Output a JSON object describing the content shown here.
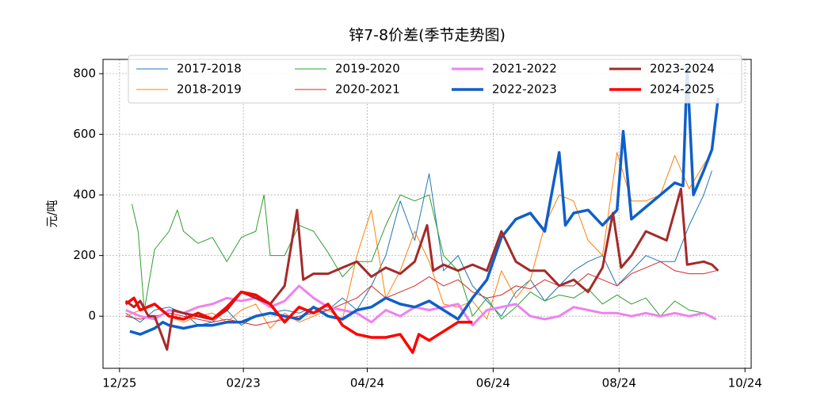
{
  "chart_data": {
    "type": "line",
    "title": "锌7-8价差(季节走势图)",
    "y_label": "元/吨",
    "xlim": [
      "12/17",
      "10/27"
    ],
    "xticks": [
      "12/25",
      "02/23",
      "04/24",
      "06/24",
      "08/24",
      "10/24"
    ],
    "ylim": [
      -172,
      847
    ],
    "yticks": [
      0,
      200,
      400,
      600,
      800
    ],
    "grid": true,
    "series": [
      {
        "name": "2017-2018",
        "color": "#1f77b4",
        "width": 1,
        "x": [
          "12/28",
          "01/04",
          "01/11",
          "01/18",
          "01/25",
          "02/01",
          "02/08",
          "02/15",
          "02/22",
          "03/01",
          "03/08",
          "03/15",
          "03/22",
          "03/29",
          "04/05",
          "04/12",
          "04/19",
          "04/26",
          "05/03",
          "05/10",
          "05/17",
          "05/24",
          "05/31",
          "06/07",
          "06/14",
          "06/21",
          "06/28",
          "07/05",
          "07/12",
          "07/19",
          "07/26",
          "08/02",
          "08/09",
          "08/16",
          "08/23",
          "08/30",
          "09/06",
          "09/13",
          "09/20",
          "09/27",
          "10/04",
          "10/08"
        ],
        "values": [
          10,
          -20,
          20,
          30,
          10,
          -30,
          -20,
          20,
          -30,
          0,
          10,
          20,
          10,
          30,
          20,
          60,
          20,
          100,
          200,
          380,
          250,
          470,
          150,
          200,
          100,
          50,
          0,
          80,
          120,
          50,
          100,
          150,
          180,
          200,
          100,
          150,
          200,
          180,
          180,
          300,
          400,
          480
        ]
      },
      {
        "name": "2018-2019",
        "color": "#ff7f0e",
        "width": 1,
        "x": [
          "12/28",
          "01/04",
          "01/11",
          "01/18",
          "01/25",
          "02/01",
          "02/08",
          "02/15",
          "02/22",
          "03/01",
          "03/08",
          "03/15",
          "03/22",
          "03/29",
          "04/05",
          "04/12",
          "04/19",
          "04/26",
          "05/03",
          "05/10",
          "05/17",
          "05/24",
          "05/31",
          "06/07",
          "06/14",
          "06/21",
          "06/28",
          "07/05",
          "07/12",
          "07/19",
          "07/26",
          "08/02",
          "08/09",
          "08/16",
          "08/23",
          "08/30",
          "09/06",
          "09/13",
          "09/20",
          "09/27",
          "10/04",
          "10/08"
        ],
        "values": [
          0,
          20,
          40,
          0,
          -20,
          0,
          10,
          -20,
          20,
          40,
          -40,
          10,
          -20,
          0,
          20,
          -10,
          200,
          350,
          60,
          150,
          280,
          180,
          40,
          30,
          50,
          -10,
          150,
          60,
          120,
          300,
          400,
          380,
          250,
          200,
          540,
          380,
          380,
          400,
          530,
          420,
          500,
          540
        ]
      },
      {
        "name": "2019-2020",
        "color": "#2ca02c",
        "width": 1,
        "x": [
          "12/31",
          "01/03",
          "01/06",
          "01/11",
          "01/18",
          "01/22",
          "01/25",
          "02/01",
          "02/08",
          "02/15",
          "02/22",
          "03/01",
          "03/05",
          "03/08",
          "03/15",
          "03/22",
          "03/29",
          "04/05",
          "04/12",
          "04/19",
          "04/26",
          "05/03",
          "05/10",
          "05/17",
          "05/24",
          "05/31",
          "06/07",
          "06/14",
          "06/21",
          "06/28",
          "07/05",
          "07/12",
          "07/19",
          "07/26",
          "08/02",
          "08/09",
          "08/16",
          "08/23",
          "08/30",
          "09/06",
          "09/13",
          "09/20",
          "09/27",
          "10/04",
          "10/08"
        ],
        "values": [
          370,
          280,
          20,
          220,
          280,
          350,
          280,
          240,
          260,
          180,
          260,
          280,
          400,
          200,
          200,
          300,
          280,
          210,
          130,
          180,
          180,
          300,
          400,
          380,
          400,
          200,
          150,
          0,
          60,
          -10,
          30,
          80,
          50,
          70,
          60,
          90,
          40,
          70,
          40,
          60,
          0,
          50,
          20,
          10,
          0
        ]
      },
      {
        "name": "2020-2021",
        "color": "#d62728",
        "width": 1,
        "x": [
          "12/28",
          "01/04",
          "01/11",
          "01/18",
          "01/25",
          "02/01",
          "02/08",
          "02/15",
          "02/22",
          "03/01",
          "03/08",
          "03/15",
          "03/22",
          "03/29",
          "04/05",
          "04/12",
          "04/19",
          "04/26",
          "05/03",
          "05/10",
          "05/17",
          "05/24",
          "05/31",
          "06/07",
          "06/14",
          "06/21",
          "06/28",
          "07/05",
          "07/12",
          "07/19",
          "07/26",
          "08/02",
          "08/09",
          "08/16",
          "08/23",
          "08/30",
          "09/06",
          "09/13",
          "09/20",
          "09/27",
          "10/04",
          "10/10"
        ],
        "values": [
          0,
          -10,
          0,
          10,
          0,
          -10,
          -20,
          -10,
          -20,
          -30,
          -20,
          -10,
          0,
          10,
          20,
          40,
          60,
          100,
          60,
          80,
          100,
          130,
          100,
          120,
          80,
          60,
          70,
          100,
          90,
          120,
          100,
          100,
          140,
          120,
          100,
          140,
          160,
          180,
          150,
          140,
          140,
          150
        ]
      },
      {
        "name": "2021-2022",
        "color": "#ee82ee",
        "width": 3,
        "x": [
          "12/28",
          "01/04",
          "01/11",
          "01/18",
          "01/25",
          "02/01",
          "02/08",
          "02/15",
          "02/22",
          "03/01",
          "03/08",
          "03/15",
          "03/22",
          "03/29",
          "04/05",
          "04/12",
          "04/19",
          "04/26",
          "05/03",
          "05/10",
          "05/17",
          "05/24",
          "05/31",
          "06/07",
          "06/14",
          "06/21",
          "06/28",
          "07/05",
          "07/12",
          "07/19",
          "07/26",
          "08/02",
          "08/09",
          "08/16",
          "08/23",
          "08/30",
          "09/06",
          "09/13",
          "09/20",
          "09/27",
          "10/04",
          "10/10"
        ],
        "values": [
          20,
          0,
          -10,
          20,
          10,
          30,
          40,
          60,
          50,
          60,
          30,
          50,
          100,
          60,
          30,
          20,
          10,
          -20,
          20,
          0,
          30,
          20,
          30,
          40,
          -30,
          20,
          30,
          40,
          0,
          -10,
          0,
          30,
          20,
          10,
          10,
          0,
          10,
          0,
          10,
          0,
          10,
          -10
        ]
      },
      {
        "name": "2022-2023",
        "color": "#0f5fc9",
        "width": 3.5,
        "x": [
          "12/30",
          "01/04",
          "01/11",
          "01/15",
          "01/18",
          "01/25",
          "02/01",
          "02/08",
          "02/15",
          "02/22",
          "03/01",
          "03/08",
          "03/15",
          "03/22",
          "03/29",
          "04/05",
          "04/12",
          "04/19",
          "04/26",
          "05/03",
          "05/10",
          "05/17",
          "05/24",
          "05/31",
          "06/07",
          "06/14",
          "06/21",
          "06/28",
          "07/05",
          "07/12",
          "07/19",
          "07/26",
          "07/29",
          "08/02",
          "08/09",
          "08/16",
          "08/23",
          "08/26",
          "08/30",
          "09/06",
          "09/13",
          "09/20",
          "09/24",
          "09/26",
          "09/29",
          "10/04",
          "10/08",
          "10/11"
        ],
        "values": [
          -50,
          -60,
          -40,
          -20,
          -30,
          -40,
          -30,
          -30,
          -20,
          -20,
          0,
          10,
          0,
          -10,
          30,
          0,
          -10,
          20,
          30,
          60,
          40,
          30,
          50,
          20,
          -10,
          60,
          120,
          260,
          320,
          340,
          280,
          540,
          300,
          340,
          350,
          300,
          350,
          610,
          320,
          360,
          400,
          440,
          430,
          820,
          400,
          480,
          550,
          720
        ]
      },
      {
        "name": "2023-2024",
        "color": "#a52a2a",
        "width": 3,
        "x": [
          "12/28",
          "01/01",
          "01/04",
          "01/08",
          "01/11",
          "01/17",
          "01/20",
          "01/25",
          "02/01",
          "02/08",
          "02/15",
          "02/22",
          "03/01",
          "03/08",
          "03/15",
          "03/21",
          "03/24",
          "03/29",
          "04/05",
          "04/12",
          "04/19",
          "04/26",
          "05/03",
          "05/10",
          "05/17",
          "05/23",
          "05/26",
          "05/31",
          "06/07",
          "06/14",
          "06/21",
          "06/28",
          "07/05",
          "07/12",
          "07/19",
          "07/26",
          "08/02",
          "08/09",
          "08/16",
          "08/21",
          "08/25",
          "08/30",
          "09/06",
          "09/16",
          "09/23",
          "09/26",
          "10/04",
          "10/08",
          "10/11"
        ],
        "values": [
          50,
          30,
          50,
          0,
          0,
          -110,
          20,
          10,
          0,
          -10,
          20,
          80,
          60,
          40,
          100,
          350,
          120,
          140,
          140,
          160,
          180,
          130,
          160,
          140,
          180,
          300,
          150,
          170,
          150,
          170,
          150,
          280,
          180,
          150,
          150,
          100,
          120,
          80,
          160,
          340,
          160,
          200,
          280,
          250,
          420,
          170,
          180,
          170,
          150
        ]
      },
      {
        "name": "2024-2025",
        "color": "#ff0000",
        "width": 3.5,
        "x": [
          "12/28",
          "01/01",
          "01/04",
          "01/11",
          "01/18",
          "01/25",
          "02/01",
          "02/08",
          "02/15",
          "02/22",
          "03/01",
          "03/08",
          "03/15",
          "03/22",
          "03/29",
          "04/05",
          "04/12",
          "04/19",
          "04/26",
          "05/03",
          "05/10",
          "05/16",
          "05/19",
          "05/24",
          "05/31",
          "06/07",
          "06/14"
        ],
        "values": [
          40,
          60,
          20,
          40,
          0,
          -10,
          10,
          -10,
          30,
          80,
          70,
          40,
          -20,
          30,
          10,
          40,
          -30,
          -60,
          -70,
          -70,
          -60,
          -120,
          -60,
          -80,
          -50,
          -20,
          -20
        ]
      }
    ]
  }
}
